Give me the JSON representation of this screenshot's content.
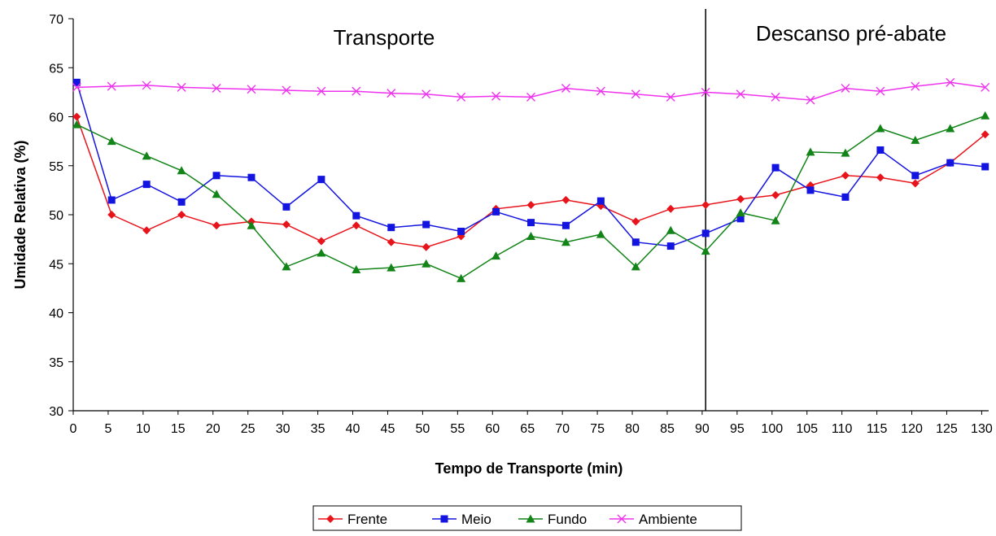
{
  "chart_data": {
    "type": "line",
    "xlabel": "Tempo de Transporte (min)",
    "ylabel": "Umidade Relativa (%)",
    "xlim": [
      0,
      131
    ],
    "ylim": [
      30,
      70
    ],
    "x_ticks": [
      0,
      5,
      10,
      15,
      20,
      25,
      30,
      35,
      40,
      45,
      50,
      55,
      60,
      65,
      70,
      75,
      80,
      85,
      90,
      95,
      100,
      105,
      110,
      115,
      120,
      125,
      130
    ],
    "y_ticks": [
      30,
      35,
      40,
      45,
      50,
      55,
      60,
      65,
      70
    ],
    "grid": false,
    "legend_position": "bottom",
    "divider_x": 90.5,
    "annotations": [
      {
        "text": "Transporte",
        "region": "left"
      },
      {
        "text": "Descanso pré-abate",
        "region": "right"
      }
    ],
    "x": [
      0.5,
      5.5,
      10.5,
      15.5,
      20.5,
      25.5,
      30.5,
      35.5,
      40.5,
      45.5,
      50.5,
      55.5,
      60.5,
      65.5,
      70.5,
      75.5,
      80.5,
      85.5,
      90.5,
      95.5,
      100.5,
      105.5,
      110.5,
      115.5,
      120.5,
      125.5,
      130.5
    ],
    "series": [
      {
        "name": "Frente",
        "color": "#e8141c",
        "marker": "diamond",
        "values": [
          60.0,
          50.0,
          48.4,
          50.0,
          48.9,
          49.3,
          49.0,
          47.3,
          48.9,
          47.2,
          46.7,
          47.8,
          50.6,
          51.0,
          51.5,
          50.9,
          49.3,
          50.6,
          51.0,
          51.6,
          52.0,
          53.0,
          54.0,
          53.8,
          53.2,
          55.3,
          58.2
        ]
      },
      {
        "name": "Meio",
        "color": "#1414e0",
        "marker": "square",
        "values": [
          63.5,
          51.5,
          53.1,
          51.3,
          54.0,
          53.8,
          50.8,
          53.6,
          49.9,
          48.7,
          49.0,
          48.3,
          50.3,
          49.2,
          48.9,
          51.4,
          47.2,
          46.8,
          48.1,
          49.6,
          54.8,
          52.5,
          51.8,
          56.6,
          54.0,
          55.3,
          54.9
        ]
      },
      {
        "name": "Fundo",
        "color": "#128418",
        "marker": "triangle",
        "values": [
          59.2,
          57.5,
          56.0,
          54.5,
          52.1,
          48.9,
          44.7,
          46.1,
          44.4,
          44.6,
          45.0,
          43.5,
          45.8,
          47.8,
          47.2,
          48.0,
          44.7,
          48.4,
          46.3,
          50.2,
          49.4,
          56.4,
          56.3,
          58.8,
          57.6,
          58.8,
          60.1
        ]
      },
      {
        "name": "Ambiente",
        "color": "#ee33ee",
        "marker": "x",
        "values": [
          63.0,
          63.1,
          63.2,
          63.0,
          62.9,
          62.8,
          62.7,
          62.6,
          62.6,
          62.4,
          62.3,
          62.0,
          62.1,
          62.0,
          62.9,
          62.6,
          62.3,
          62.0,
          62.5,
          62.3,
          62.0,
          61.7,
          62.9,
          62.6,
          63.1,
          63.5,
          63.0
        ]
      }
    ]
  }
}
